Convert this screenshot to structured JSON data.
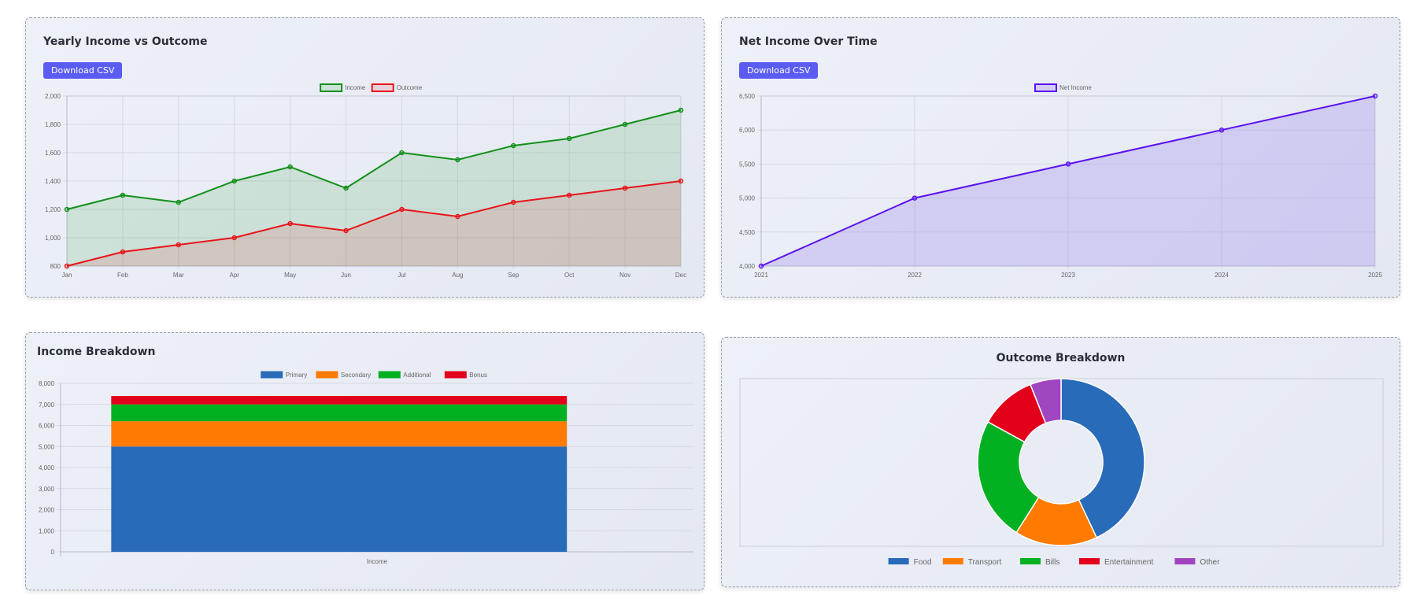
{
  "cards": {
    "yearly": {
      "title": "Yearly Income vs Outcome",
      "button": "Download CSV"
    },
    "net": {
      "title": "Net Income Over Time",
      "button": "Download CSV"
    },
    "income": {
      "title": "Income Breakdown"
    },
    "outcome": {
      "title": "Outcome Breakdown"
    }
  },
  "chart_data": [
    {
      "id": "yearly",
      "type": "line",
      "title": "Yearly Income vs Outcome",
      "x": [
        "Jan",
        "Feb",
        "Mar",
        "Apr",
        "May",
        "Jun",
        "Jul",
        "Aug",
        "Sep",
        "Oct",
        "Nov",
        "Dec"
      ],
      "series": [
        {
          "name": "Income",
          "color": "#12901a",
          "fill": "rgba(18,144,26,0.13)",
          "values": [
            1200,
            1300,
            1250,
            1400,
            1500,
            1350,
            1600,
            1550,
            1650,
            1700,
            1800,
            1900
          ]
        },
        {
          "name": "Outcome",
          "color": "#e8141b",
          "fill": "rgba(232,20,27,0.12)",
          "values": [
            800,
            900,
            950,
            1000,
            1100,
            1050,
            1200,
            1150,
            1250,
            1300,
            1350,
            1400
          ]
        }
      ],
      "ylim": [
        800,
        2000
      ],
      "yticks": [
        800,
        1000,
        1200,
        1400,
        1600,
        1800,
        2000
      ],
      "grid": true,
      "legend": "top-center"
    },
    {
      "id": "net",
      "type": "area",
      "title": "Net Income Over Time",
      "x": [
        "2021",
        "2022",
        "2023",
        "2024",
        "2025"
      ],
      "series": [
        {
          "name": "Net Income",
          "color": "#5b12ee",
          "fill": "rgba(140,110,235,0.25)",
          "values": [
            4000,
            5000,
            5500,
            6000,
            6500
          ]
        }
      ],
      "ylim": [
        4000,
        6500
      ],
      "yticks": [
        4000,
        4500,
        5000,
        5500,
        6000,
        6500
      ],
      "grid": true,
      "legend": "top-center"
    },
    {
      "id": "income",
      "type": "bar",
      "stacked": true,
      "title": "Income Breakdown",
      "categories": [
        "Income"
      ],
      "series": [
        {
          "name": "Primary",
          "color": "#286bb8",
          "values": [
            5000
          ]
        },
        {
          "name": "Secondary",
          "color": "#ff7b00",
          "values": [
            1200
          ]
        },
        {
          "name": "Additional",
          "color": "#03b021",
          "values": [
            800
          ]
        },
        {
          "name": "Bonus",
          "color": "#e3001a",
          "values": [
            400
          ]
        }
      ],
      "ylim": [
        0,
        8000
      ],
      "yticks": [
        0,
        1000,
        2000,
        3000,
        4000,
        5000,
        6000,
        7000,
        8000
      ],
      "grid": true,
      "legend": "top-center"
    },
    {
      "id": "outcome",
      "type": "pie",
      "donut": true,
      "title": "Outcome Breakdown",
      "labels": [
        "Food",
        "Transport",
        "Bills",
        "Entertainment",
        "Other"
      ],
      "values": [
        43,
        16,
        24,
        11,
        6
      ],
      "colors": [
        "#286bb8",
        "#ff7b00",
        "#03b021",
        "#e3001a",
        "#a046c0"
      ],
      "legend": "bottom"
    }
  ]
}
